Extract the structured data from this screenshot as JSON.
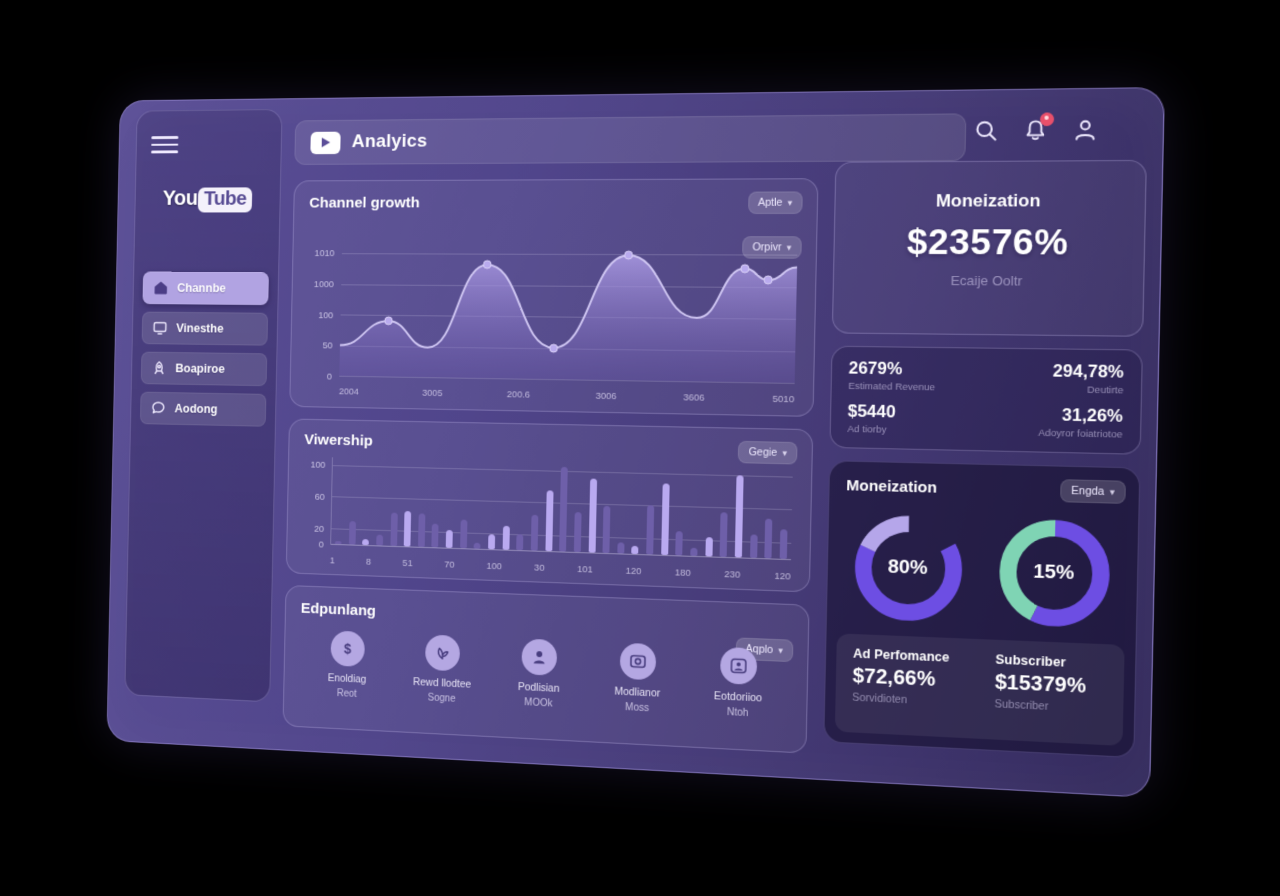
{
  "colors": {
    "accent_purple": "#6d4ee3",
    "lavender": "#b5a6ea",
    "mint": "#7fd4b4",
    "bar_dark": "#6e5fa9",
    "bar_light": "#b9a9f0",
    "line": "#cfc6f2",
    "notification_badge_red": "#e8506b"
  },
  "header": {
    "title": "Analyics",
    "icons": [
      "search-icon",
      "notifications-bell-icon",
      "profile-icon"
    ]
  },
  "sidebar": {
    "logo_you": "You",
    "logo_tube": "Tube",
    "items": [
      {
        "label": "Channbe",
        "icon": "home",
        "active": true
      },
      {
        "label": "Vinesthe",
        "icon": "monitor",
        "active": false
      },
      {
        "label": "Boapiroe",
        "icon": "rocket",
        "active": false
      },
      {
        "label": "Aodong",
        "icon": "chat",
        "active": false
      }
    ]
  },
  "channel_growth": {
    "title": "Channel growth",
    "dropdown_top": "Aptle",
    "dropdown_inner": "Orpivr",
    "chart_data": {
      "type": "area",
      "y_ticks": [
        "1010",
        "1000",
        "100",
        "50",
        "0"
      ],
      "x_ticks": [
        "2004",
        "3005",
        "200.6",
        "3006",
        "3606",
        "5010"
      ],
      "ymax": 100,
      "points": [
        {
          "x": 0,
          "v": 25,
          "dot": false
        },
        {
          "x": 11,
          "v": 45,
          "dot": true
        },
        {
          "x": 20,
          "v": 24,
          "dot": false
        },
        {
          "x": 33,
          "v": 91,
          "dot": true
        },
        {
          "x": 48,
          "v": 25,
          "dot": true
        },
        {
          "x": 64,
          "v": 99,
          "dot": true
        },
        {
          "x": 79,
          "v": 50,
          "dot": false
        },
        {
          "x": 89,
          "v": 89,
          "dot": true
        },
        {
          "x": 94,
          "v": 80,
          "dot": true
        },
        {
          "x": 100,
          "v": 90,
          "dot": false
        }
      ]
    }
  },
  "viewership": {
    "title": "Viwership",
    "dropdown": "Gegie",
    "chart_data": {
      "type": "bar",
      "y_ticks": [
        100,
        60,
        20,
        0
      ],
      "x_ticks": [
        "1",
        "8",
        "51",
        "70",
        "100",
        "30",
        "101",
        "120",
        "180",
        "230",
        "120"
      ],
      "ymax": 110,
      "bars": [
        {
          "v": 4,
          "c": "dark"
        },
        {
          "v": 30,
          "c": "dark"
        },
        {
          "v": 8,
          "c": "light"
        },
        {
          "v": 14,
          "c": "dark"
        },
        {
          "v": 42,
          "c": "dark"
        },
        {
          "v": 45,
          "c": "light"
        },
        {
          "v": 42,
          "c": "dark"
        },
        {
          "v": 30,
          "c": "dark"
        },
        {
          "v": 22,
          "c": "light"
        },
        {
          "v": 36,
          "c": "dark"
        },
        {
          "v": 8,
          "c": "dark"
        },
        {
          "v": 18,
          "c": "light"
        },
        {
          "v": 30,
          "c": "light"
        },
        {
          "v": 20,
          "c": "dark"
        },
        {
          "v": 45,
          "c": "dark"
        },
        {
          "v": 75,
          "c": "light"
        },
        {
          "v": 105,
          "c": "dark"
        },
        {
          "v": 50,
          "c": "dark"
        },
        {
          "v": 92,
          "c": "light"
        },
        {
          "v": 58,
          "c": "dark"
        },
        {
          "v": 14,
          "c": "dark"
        },
        {
          "v": 10,
          "c": "light"
        },
        {
          "v": 60,
          "c": "dark"
        },
        {
          "v": 88,
          "c": "light"
        },
        {
          "v": 30,
          "c": "dark"
        },
        {
          "v": 10,
          "c": "dark"
        },
        {
          "v": 24,
          "c": "light"
        },
        {
          "v": 55,
          "c": "dark"
        },
        {
          "v": 100,
          "c": "light"
        },
        {
          "v": 28,
          "c": "dark"
        },
        {
          "v": 48,
          "c": "dark"
        },
        {
          "v": 36,
          "c": "dark"
        }
      ]
    }
  },
  "eapulang": {
    "title": "Edpunlang",
    "dropdown": "Aqplo",
    "items": [
      {
        "icon": "dollar",
        "label": "Enoldiag",
        "sub": "Reot"
      },
      {
        "icon": "hand",
        "label": "Rewd llodtee",
        "sub": "Sogne"
      },
      {
        "icon": "person",
        "label": "Podlisian",
        "sub": "MOOk"
      },
      {
        "icon": "tv",
        "label": "Modlianor",
        "sub": "Moss"
      },
      {
        "icon": "person-box",
        "label": "Eotdoriioo",
        "sub": "Ntoh"
      }
    ]
  },
  "monetization_summary": {
    "title": "Moneization",
    "value": "$23576%",
    "subtitle": "Ecaije Ooltr"
  },
  "stats": {
    "cells": [
      {
        "value": "2679%",
        "label": "Estimated Revenue",
        "align": "left"
      },
      {
        "value": "294,78%",
        "label": "Deutirte",
        "align": "right"
      },
      {
        "value": "$5440",
        "label": "Ad tiorby",
        "align": "left"
      },
      {
        "value": "31,26%",
        "label": "Adoyror foiatriotoe",
        "align": "right"
      }
    ]
  },
  "monetization_detail": {
    "title": "Moneization",
    "dropdown": "Engda",
    "chart_data": {
      "type": "pie",
      "donuts": [
        {
          "value": "80%",
          "segments": [
            {
              "color": "accent_purple",
              "start": 91.7,
              "len": 65.3
            },
            {
              "color": "lavender",
              "start": 56.9,
              "len": 18.0
            }
          ]
        },
        {
          "value": "15%",
          "segments": [
            {
              "color": "accent_purple",
              "start": 75.0,
              "len": 57.0
            },
            {
              "color": "mint",
              "start": 32.0,
              "len": 43.0
            }
          ]
        }
      ]
    },
    "footer": [
      {
        "label": "Ad Perfomance",
        "value": "$72,66%",
        "sub": "Sorvidioten"
      },
      {
        "label": "Subscriber",
        "value": "$15379%",
        "sub": "Subscriber"
      }
    ]
  }
}
